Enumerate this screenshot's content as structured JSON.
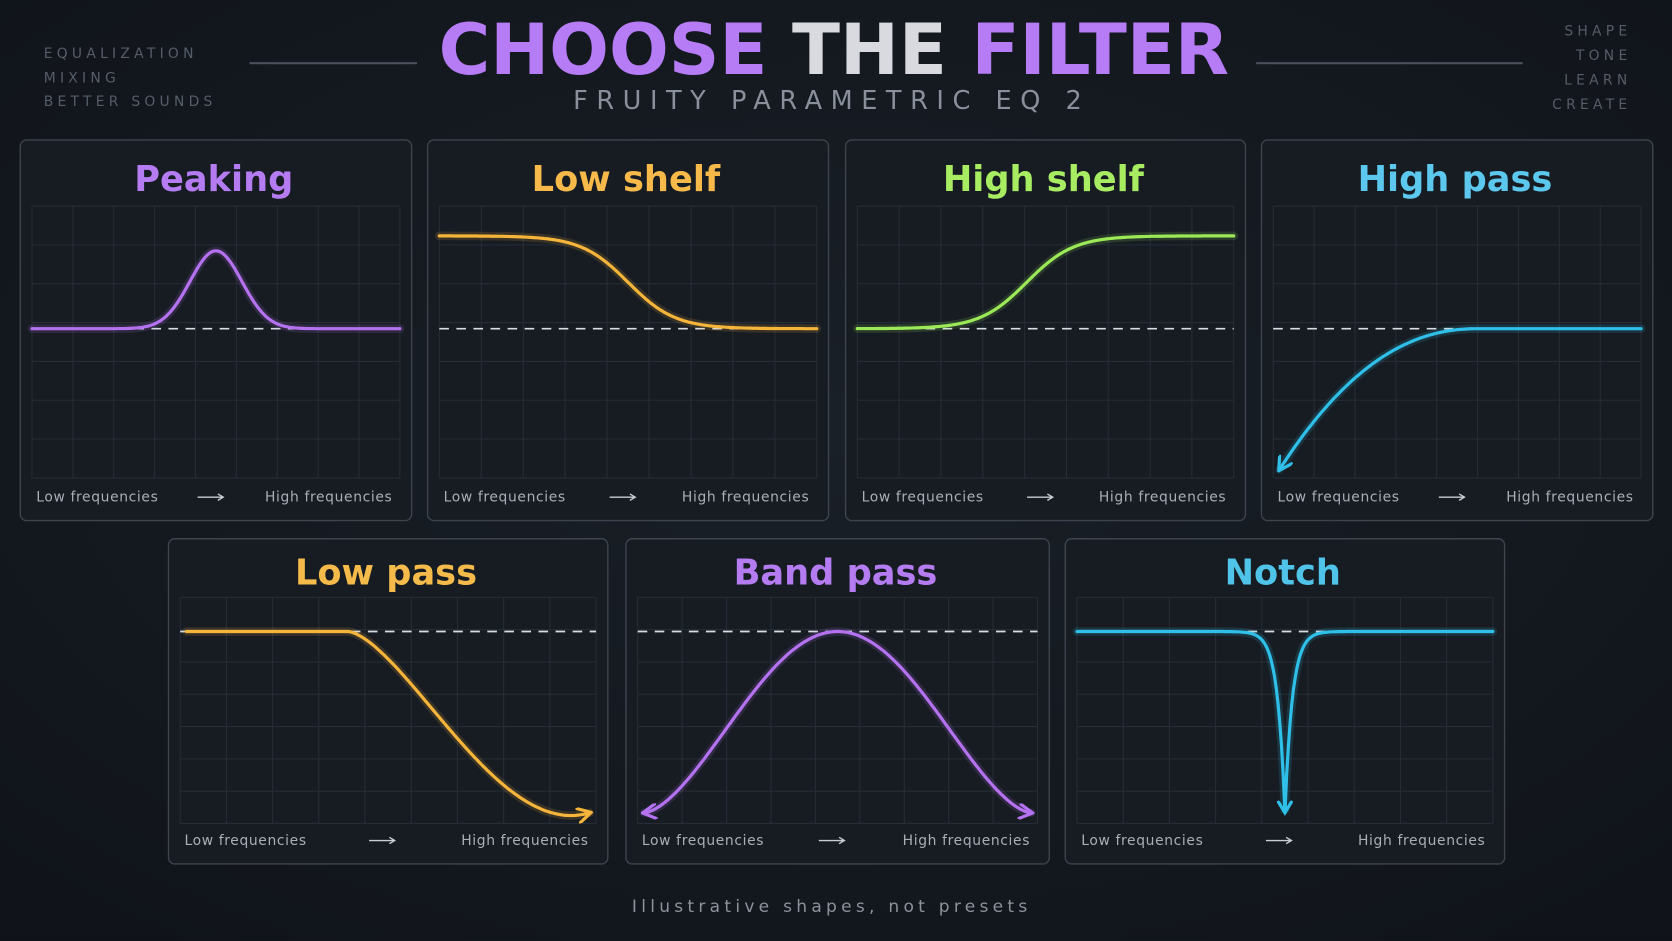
{
  "header": {
    "left_tags": [
      "EQUALIZATION",
      "MIXING",
      "BETTER SOUNDS"
    ],
    "title_parts": [
      "CHOOSE",
      "THE",
      "FILTER"
    ],
    "subtitle": "FRUITY PARAMETRIC EQ 2",
    "right_tags": [
      "SHAPE",
      "TONE",
      "LEARN",
      "CREATE"
    ]
  },
  "panels": [
    {
      "title": "Peaking",
      "low_label": "Low frequencies",
      "high_label": "High frequencies"
    },
    {
      "title": "Low shelf",
      "low_label": "Low frequencies",
      "high_label": "High frequencies"
    },
    {
      "title": "High shelf",
      "low_label": "Low frequencies",
      "high_label": "High frequencies"
    },
    {
      "title": "High pass",
      "low_label": "Low frequencies",
      "high_label": "High frequencies"
    },
    {
      "title": "Low pass",
      "low_label": "Low frequencies",
      "high_label": "High frequencies"
    },
    {
      "title": "Band pass",
      "low_label": "Low frequencies",
      "high_label": "High frequencies"
    },
    {
      "title": "Notch",
      "low_label": "Low frequencies",
      "high_label": "High frequencies"
    }
  ],
  "footer": "Illustrative shapes, not presets"
}
